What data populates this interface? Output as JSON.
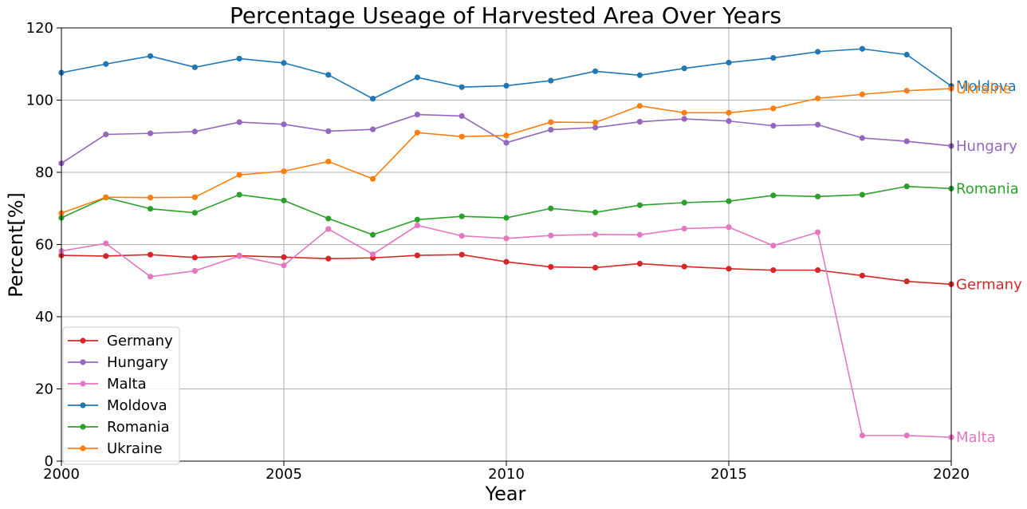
{
  "chart_data": {
    "type": "line",
    "title": "Percentage Useage of Harvested Area Over Years",
    "xlabel": "Year",
    "ylabel": "Percent[%]",
    "xlim": [
      2000,
      2020
    ],
    "ylim": [
      0,
      120
    ],
    "x_ticks": [
      "2000",
      "2005",
      "2010",
      "2015",
      "2020"
    ],
    "y_ticks": [
      "0",
      "20",
      "40",
      "60",
      "80",
      "100",
      "120"
    ],
    "grid": true,
    "legend_position": "lower-left",
    "x": [
      2000,
      2001,
      2002,
      2003,
      2004,
      2005,
      2006,
      2007,
      2008,
      2009,
      2010,
      2011,
      2012,
      2013,
      2014,
      2015,
      2016,
      2017,
      2018,
      2019,
      2020
    ],
    "series": [
      {
        "name": "Germany",
        "color": "#d62728",
        "values": [
          57.0,
          56.8,
          57.2,
          56.4,
          56.9,
          56.5,
          56.1,
          56.3,
          57.0,
          57.2,
          55.2,
          53.8,
          53.6,
          54.7,
          53.9,
          53.3,
          52.9,
          52.9,
          51.4,
          49.8,
          49.0
        ]
      },
      {
        "name": "Hungary",
        "color": "#9467bd",
        "values": [
          82.5,
          90.5,
          90.8,
          91.3,
          93.9,
          93.3,
          91.4,
          91.9,
          96.0,
          95.6,
          88.2,
          91.8,
          92.4,
          94.0,
          94.8,
          94.2,
          92.9,
          93.2,
          89.5,
          88.6,
          87.3
        ]
      },
      {
        "name": "Malta",
        "color": "#e377c2",
        "values": [
          58.2,
          60.3,
          51.1,
          52.7,
          56.8,
          54.2,
          64.3,
          57.3,
          65.3,
          62.4,
          61.7,
          62.5,
          62.8,
          62.7,
          64.4,
          64.8,
          59.7,
          63.4,
          7.1,
          7.1,
          6.6
        ]
      },
      {
        "name": "Moldova",
        "color": "#1f77b4",
        "values": [
          107.6,
          110.0,
          112.2,
          109.1,
          111.5,
          110.3,
          107.0,
          100.4,
          106.3,
          103.6,
          104.0,
          105.4,
          108.0,
          106.9,
          108.8,
          110.4,
          111.7,
          113.4,
          114.2,
          112.6,
          103.9
        ]
      },
      {
        "name": "Romania",
        "color": "#2ca02c",
        "values": [
          67.4,
          73.0,
          69.9,
          68.8,
          73.8,
          72.2,
          67.2,
          62.7,
          66.9,
          67.8,
          67.4,
          70.0,
          68.9,
          70.9,
          71.6,
          72.0,
          73.6,
          73.3,
          73.8,
          76.1,
          75.5
        ]
      },
      {
        "name": "Ukraine",
        "color": "#ff7f0e",
        "values": [
          68.7,
          73.1,
          73.0,
          73.1,
          79.3,
          80.3,
          83.0,
          78.2,
          91.0,
          89.9,
          90.2,
          93.9,
          93.8,
          98.4,
          96.5,
          96.5,
          97.7,
          100.5,
          101.6,
          102.6,
          103.2
        ]
      }
    ]
  }
}
